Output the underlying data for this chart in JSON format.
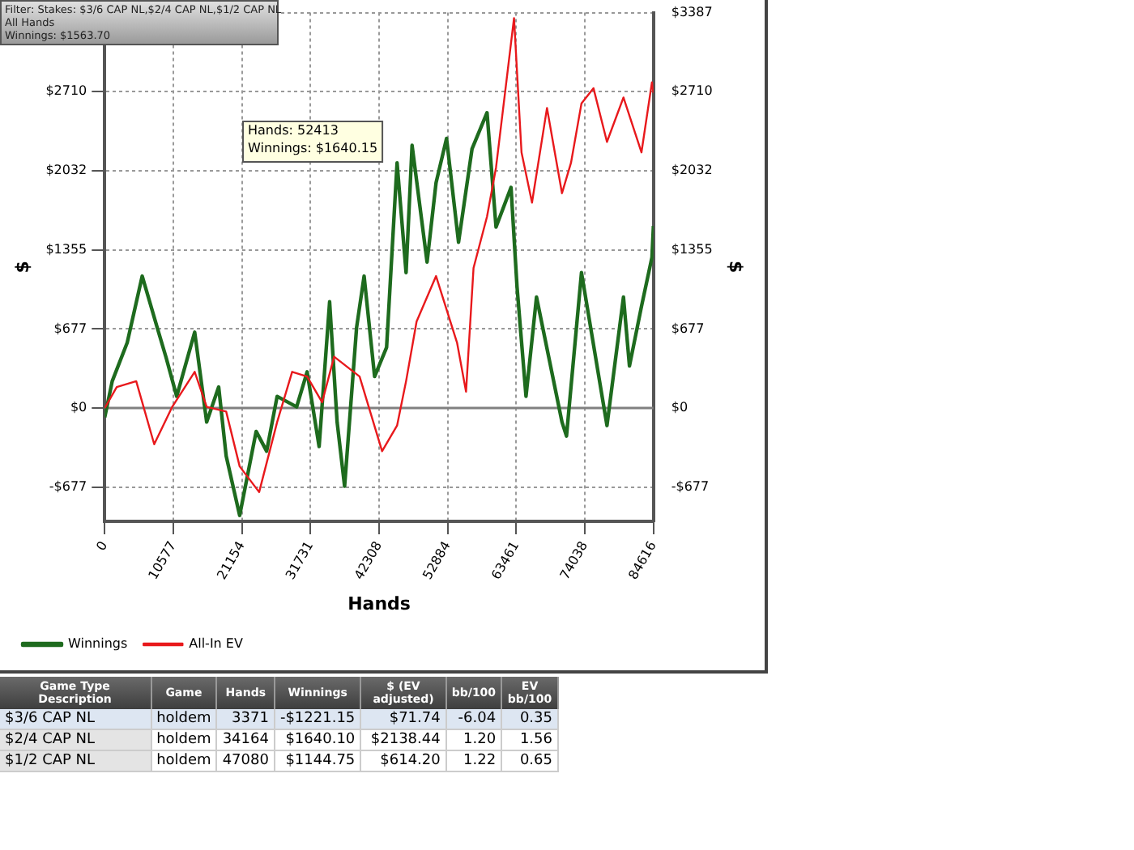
{
  "chart_data": {
    "type": "line",
    "xlabel": "Hands",
    "ylabel": "$",
    "y2label": "$",
    "xlim": [
      0,
      84616
    ],
    "xticks": [
      0,
      10577,
      21154,
      31731,
      42308,
      52884,
      63461,
      74038,
      84616
    ],
    "ylim": [
      -970,
      3387
    ],
    "yticks": [
      {
        "value": -677,
        "label": "-$677"
      },
      {
        "value": 0,
        "label": "$0"
      },
      {
        "value": 677,
        "label": "$677"
      },
      {
        "value": 1355,
        "label": "$1355"
      },
      {
        "value": 2032,
        "label": "$2032"
      },
      {
        "value": 2710,
        "label": "$2710"
      },
      {
        "value": 3387,
        "label": null
      }
    ],
    "y2lim": [
      -970,
      3387
    ],
    "y2ticks": [
      {
        "value": -677,
        "label": "-$677"
      },
      {
        "value": 0,
        "label": "$0"
      },
      {
        "value": 677,
        "label": "$677"
      },
      {
        "value": 1355,
        "label": "$1355"
      },
      {
        "value": 2032,
        "label": "$2032"
      },
      {
        "value": 2710,
        "label": "$2710"
      },
      {
        "value": 3387,
        "label": "$3387"
      }
    ],
    "grid": true,
    "legend": "bottom",
    "marker": "none",
    "ref_lines": [
      {
        "axis": "y",
        "value": 0,
        "color": "#808080"
      }
    ],
    "series": [
      {
        "name": "Winnings",
        "color": "#1e6b1e",
        "x": [
          0,
          1156,
          3468,
          5780,
          8092,
          9479,
          11098,
          13872,
          15722,
          17571,
          18727,
          20808,
          23351,
          24970,
          26588,
          29594,
          31212,
          33062,
          34680,
          35836,
          36992,
          38842,
          39998,
          41616,
          43466,
          45084,
          46471,
          47396,
          49708,
          51095,
          52714,
          54563,
          56644,
          58956,
          60343,
          62655,
          63580,
          64967,
          66586,
          70516,
          71210,
          73522,
          77452,
          79995,
          80920,
          82770,
          84388,
          84616
        ],
        "values": [
          -80,
          230,
          560,
          1130,
          690,
          430,
          100,
          650,
          -120,
          180,
          -410,
          -920,
          -200,
          -370,
          100,
          10,
          310,
          -330,
          910,
          -120,
          -670,
          690,
          1130,
          270,
          520,
          2100,
          1160,
          2250,
          1250,
          1930,
          2310,
          1420,
          2220,
          2530,
          1550,
          1890,
          1040,
          100,
          950,
          -120,
          -240,
          1160,
          -150,
          950,
          360,
          870,
          1290,
          1560
        ]
      },
      {
        "name": "All-In EV",
        "color": "#e8191c",
        "x": [
          0,
          1850,
          4855,
          7630,
          10404,
          13872,
          15722,
          18727,
          20808,
          23814,
          26588,
          28900,
          31212,
          33524,
          35374,
          39304,
          42772,
          45084,
          46471,
          48090,
          51095,
          54332,
          55719,
          56875,
          58956,
          60343,
          63118,
          64274,
          65892,
          68204,
          70516,
          71903,
          73522,
          75371,
          77452,
          79995,
          82770,
          84388,
          84616
        ],
        "values": [
          0,
          180,
          230,
          -310,
          10,
          310,
          10,
          -30,
          -500,
          -720,
          -120,
          310,
          270,
          50,
          440,
          270,
          -370,
          -150,
          230,
          740,
          1130,
          560,
          140,
          1200,
          1640,
          2060,
          3340,
          2190,
          1760,
          2570,
          1840,
          2100,
          2610,
          2740,
          2280,
          2660,
          2190,
          2790,
          2700
        ]
      }
    ],
    "annotations": [
      "Filter: Stakes: $3/6 CAP NL,$2/4 CAP NL,$1/2 CAP NL",
      "All Hands",
      "Winnings: $1563.70",
      "Hands: 52413\nWinnings: $1640.15",
      "Game Type Description",
      "Game",
      "Hands",
      "Winnings",
      "$ (EV adjusted)",
      "bb/100",
      "EV bb/100",
      "$3/6 CAP NL",
      "holdem",
      "3371",
      "-$1221.15",
      "$71.74",
      "-6.04",
      "0.35",
      "$2/4 CAP NL",
      "holdem",
      "34164",
      "$1640.10",
      "$2138.44",
      "1.20",
      "1.56",
      "$1/2 CAP NL",
      "holdem",
      "47080",
      "$1144.75",
      "$614.20",
      "1.22",
      "0.65"
    ]
  }
}
